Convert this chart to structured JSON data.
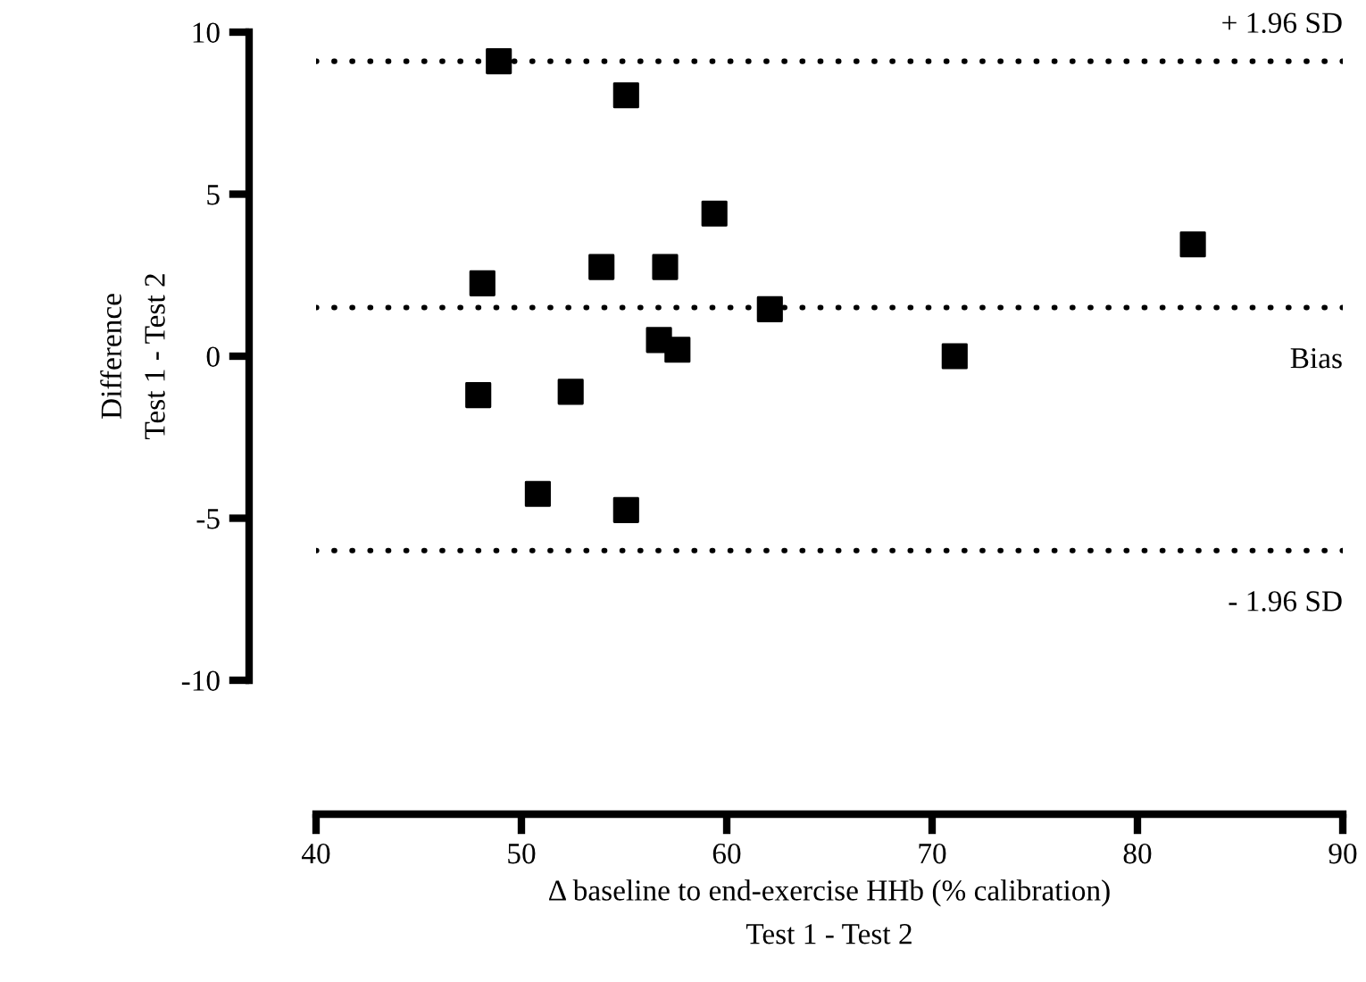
{
  "chart_data": {
    "type": "scatter",
    "xlabel": "Δ baseline to end-exercise HHb (% calibration)\nTest 1 - Test 2",
    "ylabel": "Difference\nTest 1 - Test 2",
    "x": [
      48.9,
      55.1,
      59.4,
      53.9,
      57.0,
      48.1,
      62.1,
      56.7,
      57.6,
      47.9,
      52.4,
      50.8,
      55.1,
      82.7,
      71.1
    ],
    "series": [
      {
        "color": "#000000",
        "values": [
          9.1,
          8.05,
          4.4,
          2.75,
          2.75,
          2.25,
          1.45,
          0.5,
          0.2,
          -1.2,
          -1.1,
          -4.25,
          -4.75,
          3.45,
          0.0
        ]
      }
    ],
    "marker": "square",
    "xlim": [
      40,
      90
    ],
    "xticks": [
      40,
      50,
      60,
      70,
      80,
      90
    ],
    "ylim": [
      -10,
      10
    ],
    "yticks": [
      -10,
      -5,
      0,
      5,
      10
    ],
    "grid": false,
    "legend": false,
    "ref_lines": [
      {
        "axis": "y",
        "value": 9.1,
        "label": "+ 1.96 SD",
        "color": "#000000",
        "line_style": "dotted"
      },
      {
        "axis": "y",
        "value": 1.5,
        "label": "Bias",
        "color": "#000000",
        "line_style": "dotted"
      },
      {
        "axis": "y",
        "value": -6.0,
        "label": "- 1.96 SD",
        "color": "#000000",
        "line_style": "dotted"
      }
    ]
  }
}
